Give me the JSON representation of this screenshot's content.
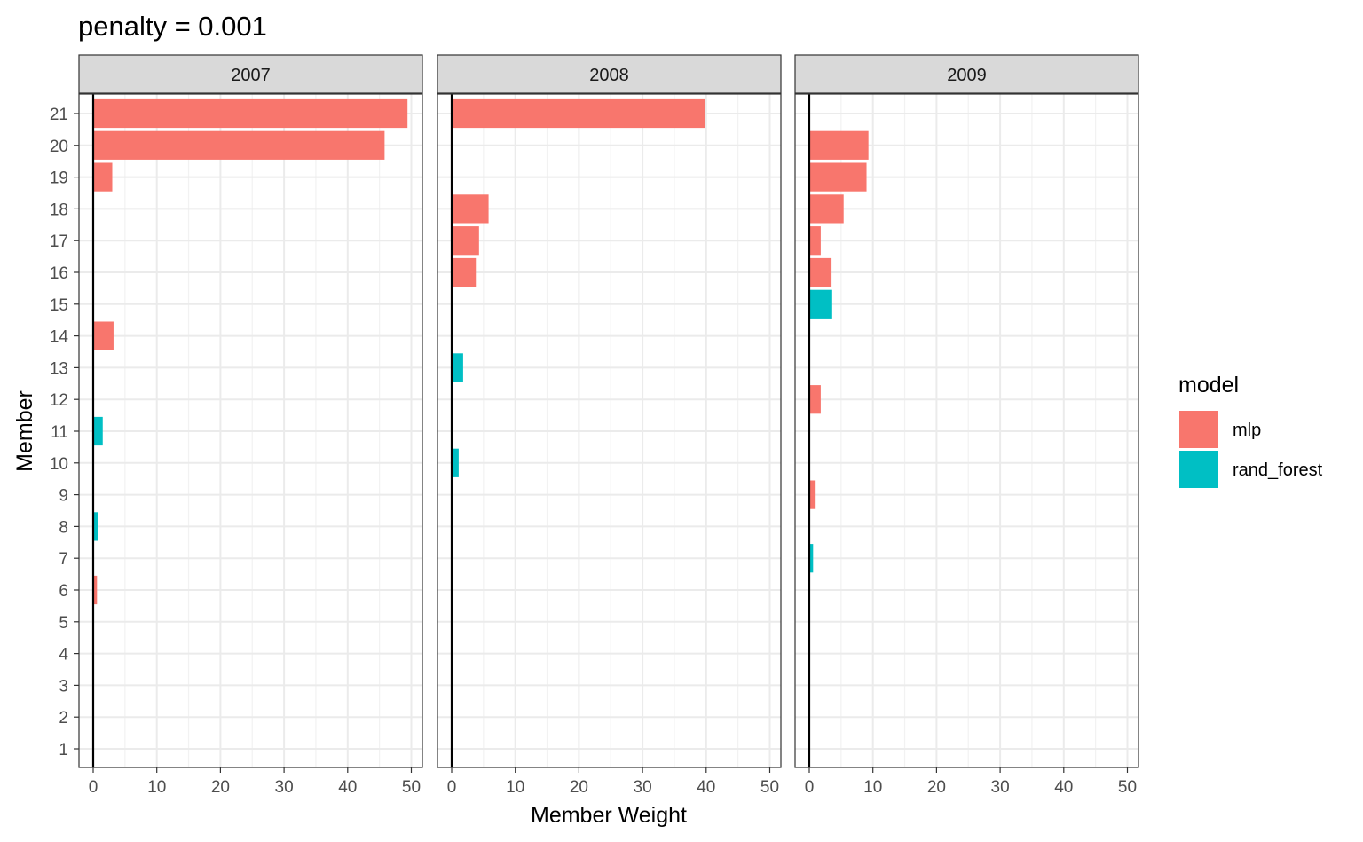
{
  "chart_data": {
    "type": "bar",
    "orientation": "horizontal",
    "title": "penalty = 0.001",
    "xlabel": "Member Weight",
    "ylabel": "Member",
    "xlim": [
      0,
      50
    ],
    "x_ticks": [
      0,
      10,
      20,
      30,
      40,
      50
    ],
    "categories": [
      "1",
      "2",
      "3",
      "4",
      "5",
      "6",
      "7",
      "8",
      "9",
      "10",
      "11",
      "12",
      "13",
      "14",
      "15",
      "16",
      "17",
      "18",
      "19",
      "20",
      "21"
    ],
    "grid": true,
    "legend": {
      "title": "model",
      "position": "right",
      "entries": [
        {
          "name": "mlp",
          "color": "#F8766D"
        },
        {
          "name": "rand_forest",
          "color": "#00BFC4"
        }
      ]
    },
    "facets": [
      {
        "label": "2007",
        "bars": [
          {
            "member": "21",
            "value": 49.4,
            "model": "mlp"
          },
          {
            "member": "20",
            "value": 45.8,
            "model": "mlp"
          },
          {
            "member": "19",
            "value": 3.0,
            "model": "mlp"
          },
          {
            "member": "14",
            "value": 3.2,
            "model": "mlp"
          },
          {
            "member": "11",
            "value": 1.5,
            "model": "rand_forest"
          },
          {
            "member": "8",
            "value": 0.8,
            "model": "rand_forest"
          },
          {
            "member": "6",
            "value": 0.6,
            "model": "mlp"
          }
        ]
      },
      {
        "label": "2008",
        "bars": [
          {
            "member": "21",
            "value": 39.8,
            "model": "mlp"
          },
          {
            "member": "18",
            "value": 5.8,
            "model": "mlp"
          },
          {
            "member": "17",
            "value": 4.3,
            "model": "mlp"
          },
          {
            "member": "16",
            "value": 3.8,
            "model": "mlp"
          },
          {
            "member": "13",
            "value": 1.8,
            "model": "rand_forest"
          },
          {
            "member": "10",
            "value": 1.1,
            "model": "rand_forest"
          }
        ]
      },
      {
        "label": "2009",
        "bars": [
          {
            "member": "20",
            "value": 9.3,
            "model": "mlp"
          },
          {
            "member": "19",
            "value": 9.0,
            "model": "mlp"
          },
          {
            "member": "18",
            "value": 5.4,
            "model": "mlp"
          },
          {
            "member": "17",
            "value": 1.8,
            "model": "mlp"
          },
          {
            "member": "16",
            "value": 3.5,
            "model": "mlp"
          },
          {
            "member": "15",
            "value": 3.6,
            "model": "rand_forest"
          },
          {
            "member": "12",
            "value": 1.8,
            "model": "mlp"
          },
          {
            "member": "9",
            "value": 1.0,
            "model": "mlp"
          },
          {
            "member": "7",
            "value": 0.6,
            "model": "rand_forest"
          }
        ]
      }
    ]
  }
}
